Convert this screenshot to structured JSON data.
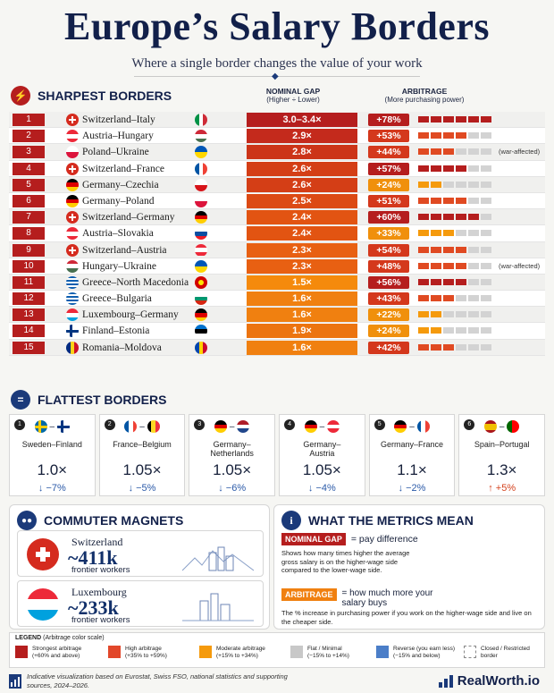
{
  "header": {
    "title": "Europe’s Salary Borders",
    "subtitle": "Where a single border changes the value of your work"
  },
  "sharpest": {
    "heading": "SHARPEST BORDERS",
    "col_gap": "NOMINAL GAP",
    "col_gap_sub": "(Higher ÷ Lower)",
    "col_arb": "ARBITRAGE",
    "col_arb_sub": "(More purchasing power)",
    "rows": [
      {
        "rank": "1",
        "pair": "Switzerland–Italy",
        "gap": "3.0–3.4×",
        "arb": "+78%",
        "filled": 6,
        "color": "#b51e1e",
        "note": ""
      },
      {
        "rank": "2",
        "pair": "Austria–Hungary",
        "gap": "2.9×",
        "arb": "+53%",
        "filled": 4,
        "color": "#c42a1c",
        "note": ""
      },
      {
        "rank": "3",
        "pair": "Poland–Ukraine",
        "gap": "2.8×",
        "arb": "+44%",
        "filled": 3,
        "color": "#cc3418",
        "note": "(war-affected)"
      },
      {
        "rank": "4",
        "pair": "Switzerland–France",
        "gap": "2.6×",
        "arb": "+57%",
        "filled": 4,
        "color": "#d43e16",
        "note": ""
      },
      {
        "rank": "5",
        "pair": "Germany–Czechia",
        "gap": "2.6×",
        "arb": "+24%",
        "filled": 2,
        "color": "#d43e16",
        "note": ""
      },
      {
        "rank": "6",
        "pair": "Germany–Poland",
        "gap": "2.5×",
        "arb": "+51%",
        "filled": 4,
        "color": "#dc4a14",
        "note": ""
      },
      {
        "rank": "7",
        "pair": "Switzerland–Germany",
        "gap": "2.4×",
        "arb": "+60%",
        "filled": 5,
        "color": "#e25412",
        "note": ""
      },
      {
        "rank": "8",
        "pair": "Austria–Slovakia",
        "gap": "2.4×",
        "arb": "+33%",
        "filled": 3,
        "color": "#e25412",
        "note": ""
      },
      {
        "rank": "9",
        "pair": "Switzerland–Austria",
        "gap": "2.3×",
        "arb": "+54%",
        "filled": 4,
        "color": "#e86012",
        "note": ""
      },
      {
        "rank": "10",
        "pair": "Hungary–Ukraine",
        "gap": "2.3×",
        "arb": "+48%",
        "filled": 4,
        "color": "#e86012",
        "note": "(war-affected)"
      },
      {
        "rank": "11",
        "pair": "Greece–North Macedonia",
        "gap": "1.5×",
        "arb": "+56%",
        "filled": 4,
        "color": "#f58a0c",
        "note": ""
      },
      {
        "rank": "12",
        "pair": "Greece–Bulgaria",
        "gap": "1.6×",
        "arb": "+43%",
        "filled": 3,
        "color": "#f08010",
        "note": ""
      },
      {
        "rank": "13",
        "pair": "Luxembourg–Germany",
        "gap": "1.6×",
        "arb": "+22%",
        "filled": 2,
        "color": "#f08010",
        "note": ""
      },
      {
        "rank": "14",
        "pair": "Finland–Estonia",
        "gap": "1.9×",
        "arb": "+24%",
        "filled": 2,
        "color": "#ec7410",
        "note": ""
      },
      {
        "rank": "15",
        "pair": "Romania–Moldova",
        "gap": "1.6×",
        "arb": "+42%",
        "filled": 3,
        "color": "#f08010",
        "note": ""
      }
    ]
  },
  "flattest": {
    "heading": "FLATTEST BORDERS",
    "cards": [
      {
        "num": "1",
        "name": "Sweden–Finland",
        "value": "1.0×",
        "change": "↓ −7%",
        "dir": "down"
      },
      {
        "num": "2",
        "name": "France–Belgium",
        "value": "1.05×",
        "change": "↓ −5%",
        "dir": "down"
      },
      {
        "num": "3",
        "name": "Germany–\nNetherlands",
        "value": "1.05×",
        "change": "↓ −6%",
        "dir": "down"
      },
      {
        "num": "4",
        "name": "Germany–\nAustria",
        "value": "1.05×",
        "change": "↓ −4%",
        "dir": "down"
      },
      {
        "num": "5",
        "name": "Germany–France",
        "value": "1.1×",
        "change": "↓ −2%",
        "dir": "down"
      },
      {
        "num": "6",
        "name": "Spain–Portugal",
        "value": "1.3×",
        "change": "↑ +5%",
        "dir": "up"
      }
    ]
  },
  "commuters": {
    "heading": "COMMUTER MAGNETS",
    "items": [
      {
        "name": "Switzerland",
        "value": "~411k",
        "label": "frontier workers"
      },
      {
        "name": "Luxembourg",
        "value": "~233k",
        "label": "frontier workers"
      }
    ]
  },
  "metrics": {
    "heading": "WHAT THE METRICS MEAN",
    "nominal_tag": "NOMINAL GAP",
    "nominal_eq": "= pay difference",
    "nominal_desc": "Shows how many times higher the average gross salary is on the higher-wage side compared to the lower-wage side.",
    "arb_tag": "ARBITRAGE",
    "arb_eq": "= how much more your salary buys",
    "arb_desc": "The % increase in purchasing power if you work on the higher-wage side and live on the cheaper side."
  },
  "legend": {
    "title": "LEGEND",
    "title_sub": "(Arbitrage color scale)",
    "items": [
      {
        "label": "Strongest arbitrage",
        "range": "(+60% and above)",
        "color": "#b51e1e"
      },
      {
        "label": "High arbitrage",
        "range": "(+35% to +59%)",
        "color": "#e2472a"
      },
      {
        "label": "Moderate arbitrage",
        "range": "(+15% to +34%)",
        "color": "#f59a0c"
      },
      {
        "label": "Flat / Minimal",
        "range": "(−15% to +14%)",
        "color": "#c8c8c8"
      },
      {
        "label": "Reverse (you earn less)",
        "range": "(−15% and below)",
        "color": "#4b7ec8"
      },
      {
        "label": "Closed / Restricted",
        "range": "border",
        "color": "#ffffff"
      }
    ]
  },
  "footer": {
    "text": "Indicative visualization based on Eurostat, Swiss FSO, national statistics and supporting sources, 2024–2026.",
    "brand": "RealWorth.io"
  }
}
